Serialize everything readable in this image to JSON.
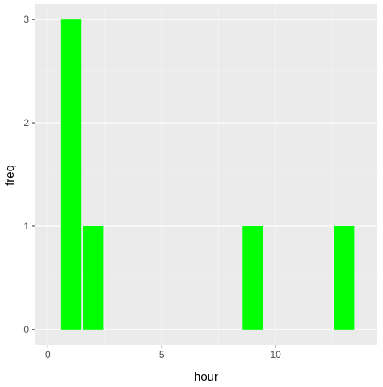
{
  "chart_data": {
    "type": "bar",
    "title": "",
    "xlabel": "hour",
    "ylabel": "freq",
    "x": [
      1,
      2,
      9,
      13
    ],
    "values": [
      3,
      1,
      1,
      1
    ],
    "bar_width": 0.9,
    "xlim": [
      0,
      14
    ],
    "ylim": [
      0,
      3
    ],
    "x_ticks": [
      0,
      5,
      10
    ],
    "x_tick_labels": [
      "0",
      "5",
      "10"
    ],
    "y_ticks": [
      0,
      1,
      2,
      3
    ],
    "y_tick_labels": [
      "0",
      "1",
      "2",
      "3"
    ],
    "grid": true,
    "legend": "none",
    "colors": {
      "bar": "#00ff00",
      "panel_background": "#ebebeb",
      "grid_major": "#ffffff",
      "grid_minor": "#f5f5f5",
      "tick_text": "#4d4d4d",
      "tick_mark": "#333333",
      "axis_title": "#000000"
    }
  }
}
